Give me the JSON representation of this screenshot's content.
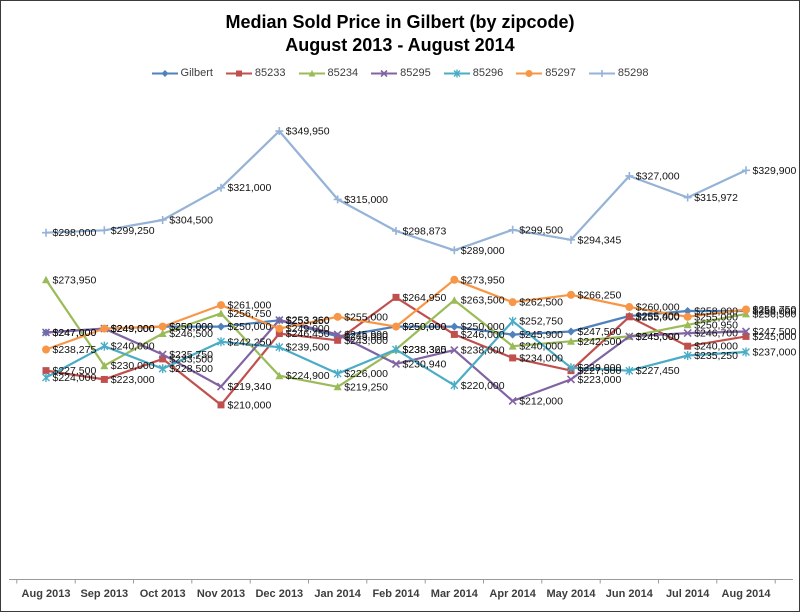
{
  "title": {
    "line1": "Median Sold Price in Gilbert (by zipcode)",
    "line2": "August 2013 - August 2014"
  },
  "chart_data": {
    "type": "line",
    "title": "Median Sold Price in Gilbert (by zipcode)",
    "subtitle": "August 2013 - August 2014",
    "xlabel": "",
    "ylabel": "",
    "grid": false,
    "legend_position": "top",
    "data_labels": true,
    "label_format": "$#,##0",
    "ylim": [
      121000,
      360200
    ],
    "x": [
      "Aug 2013",
      "Sep 2013",
      "Oct 2013",
      "Nov 2013",
      "Dec 2013",
      "Jan 2014",
      "Feb 2014",
      "Mar 2014",
      "Apr 2014",
      "May 2014",
      "Jun 2014",
      "Jul 2014",
      "Aug 2014"
    ],
    "series": [
      {
        "name": "Gilbert",
        "color": "#4F81BD",
        "marker": "diamond",
        "values": [
          247000,
          249000,
          250000,
          250000,
          253250,
          245000,
          250000,
          250000,
          245900,
          247500,
          255400,
          258000,
          258000
        ]
      },
      {
        "name": "85233",
        "color": "#C0504D",
        "marker": "square",
        "values": [
          227500,
          223000,
          233500,
          210000,
          246450,
          243000,
          264950,
          246000,
          234000,
          227500,
          255000,
          240000,
          245000
        ]
      },
      {
        "name": "85234",
        "color": "#9BBB59",
        "marker": "triangle",
        "values": [
          273950,
          230000,
          246500,
          256750,
          224900,
          219250,
          238360,
          263500,
          240000,
          242500,
          245000,
          250950,
          256500
        ]
      },
      {
        "name": "85295",
        "color": "#8064A2",
        "marker": "x",
        "values": [
          247000,
          249000,
          235750,
          219340,
          253360,
          245990,
          230940,
          238000,
          212000,
          223000,
          245000,
          246700,
          247500
        ]
      },
      {
        "name": "85296",
        "color": "#4BACC6",
        "marker": "asterisk",
        "values": [
          224000,
          240000,
          228500,
          242250,
          239500,
          226000,
          238325,
          220000,
          252750,
          229000,
          227450,
          235250,
          237000
        ]
      },
      {
        "name": "85297",
        "color": "#F79646",
        "marker": "circle",
        "values": [
          238275,
          249000,
          250000,
          261000,
          249000,
          255000,
          250000,
          273950,
          262500,
          266250,
          260000,
          255000,
          258750
        ]
      },
      {
        "name": "85298",
        "color": "#95B3D7",
        "marker": "plus",
        "values": [
          298000,
          299250,
          304500,
          321000,
          349950,
          315000,
          298873,
          289000,
          299500,
          294345,
          327000,
          315972,
          329900
        ]
      }
    ]
  }
}
